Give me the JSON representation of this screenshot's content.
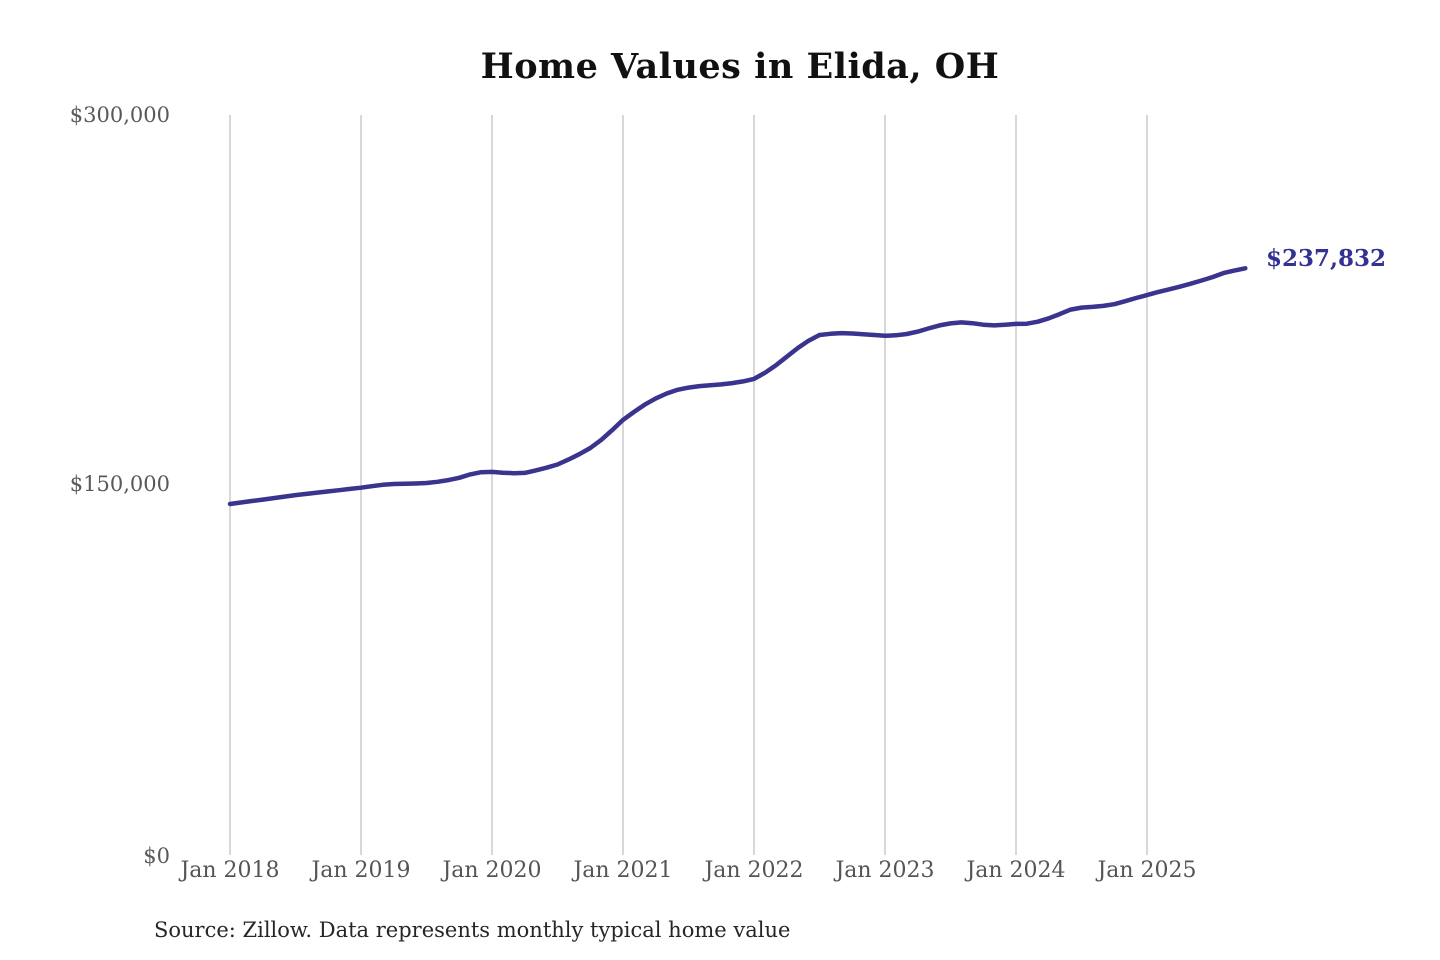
{
  "title": "Home Values in Elida, OH",
  "source_note": "Source: Zillow. Data represents monthly typical home value",
  "end_label": "$237,832",
  "colors": {
    "line": "#3a348f",
    "grid": "#cccccc",
    "tick_label": "#595959",
    "title": "#111111",
    "source": "#262626",
    "end_label": "#333192"
  },
  "chart_data": {
    "type": "line",
    "title": "Home Values in Elida, OH",
    "x_tick_labels": [
      "Jan 2018",
      "Jan 2019",
      "Jan 2020",
      "Jan 2021",
      "Jan 2022",
      "Jan 2023",
      "Jan 2024",
      "Jan 2025"
    ],
    "y_tick_labels": [
      "$0",
      "$150,000",
      "$300,000"
    ],
    "y_ticks": [
      0,
      150000,
      300000
    ],
    "ylim": [
      0,
      300000
    ],
    "grid": "vertical-year-gridlines-only",
    "legend": "none",
    "x_start": "Jan 2018",
    "x_end": "Oct 2025",
    "frequency": "monthly",
    "last_value": 237832,
    "series": [
      {
        "name": "Typical home value",
        "values": [
          142300,
          142900,
          143500,
          144100,
          144700,
          145300,
          145900,
          146400,
          146900,
          147400,
          147900,
          148400,
          148900,
          149500,
          150100,
          150400,
          150500,
          150600,
          150800,
          151300,
          152000,
          152900,
          154300,
          155200,
          155300,
          155000,
          154800,
          154900,
          155900,
          157000,
          158300,
          160300,
          162500,
          165000,
          168300,
          172200,
          176400,
          179600,
          182600,
          185100,
          187100,
          188600,
          189500,
          190100,
          190400,
          190800,
          191300,
          192000,
          193000,
          195500,
          198500,
          202000,
          205500,
          208500,
          210800,
          211300,
          211600,
          211400,
          211100,
          210800,
          210500,
          210700,
          211200,
          212200,
          213500,
          214700,
          215500,
          215900,
          215600,
          215000,
          214700,
          215000,
          215300,
          215400,
          216200,
          217600,
          219300,
          221100,
          221900,
          222200,
          222600,
          223300,
          224500,
          225800,
          227000,
          228200,
          229300,
          230400,
          231600,
          232900,
          234300,
          235900,
          236900,
          237832
        ]
      }
    ]
  }
}
